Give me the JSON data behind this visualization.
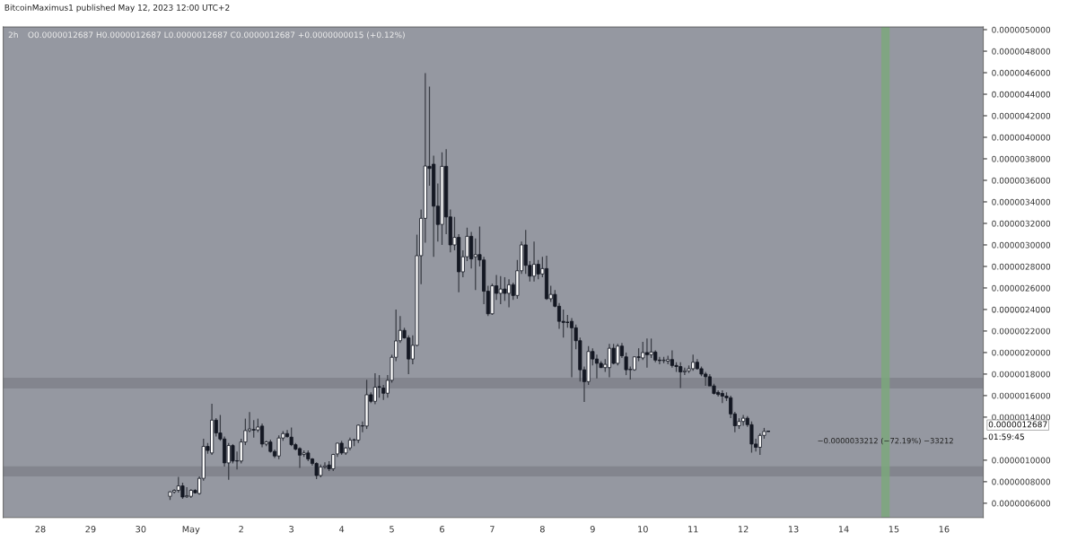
{
  "chart_data": {
    "type": "candlestick",
    "title": "2h",
    "subtitle": "O0.0000012687 H0.0000012687 L0.0000012687 C0.0000012687 +0.0000000015 (+0.12%)",
    "x": [
      "2023-04-30T14:00",
      "2023-04-30T16:00",
      "2023-04-30T18:00",
      "2023-04-30T20:00",
      "2023-04-30T22:00",
      "2023-05-01T00:00",
      "2023-05-01T02:00",
      "2023-05-01T04:00",
      "2023-05-01T06:00",
      "2023-05-01T08:00",
      "2023-05-01T10:00",
      "2023-05-01T12:00",
      "2023-05-01T14:00",
      "2023-05-01T16:00",
      "2023-05-01T18:00",
      "2023-05-01T20:00",
      "2023-05-01T22:00",
      "2023-05-02T00:00",
      "2023-05-02T02:00",
      "2023-05-02T04:00",
      "2023-05-02T06:00",
      "2023-05-02T08:00",
      "2023-05-02T10:00",
      "2023-05-02T12:00",
      "2023-05-02T14:00",
      "2023-05-02T16:00",
      "2023-05-02T18:00",
      "2023-05-02T20:00",
      "2023-05-02T22:00",
      "2023-05-03T00:00",
      "2023-05-03T02:00",
      "2023-05-03T04:00",
      "2023-05-03T06:00",
      "2023-05-03T08:00",
      "2023-05-03T10:00",
      "2023-05-03T12:00",
      "2023-05-03T14:00",
      "2023-05-03T16:00",
      "2023-05-03T18:00",
      "2023-05-03T20:00",
      "2023-05-03T22:00",
      "2023-05-04T00:00",
      "2023-05-04T02:00",
      "2023-05-04T04:00",
      "2023-05-04T06:00",
      "2023-05-04T08:00",
      "2023-05-04T10:00",
      "2023-05-04T12:00",
      "2023-05-04T14:00",
      "2023-05-04T16:00",
      "2023-05-04T18:00",
      "2023-05-04T20:00",
      "2023-05-04T22:00",
      "2023-05-05T00:00",
      "2023-05-05T02:00",
      "2023-05-05T04:00",
      "2023-05-05T06:00",
      "2023-05-05T08:00",
      "2023-05-05T10:00",
      "2023-05-05T12:00",
      "2023-05-05T14:00",
      "2023-05-05T16:00",
      "2023-05-05T18:00",
      "2023-05-05T20:00",
      "2023-05-05T22:00",
      "2023-05-06T00:00",
      "2023-05-06T02:00",
      "2023-05-06T04:00",
      "2023-05-06T06:00",
      "2023-05-06T08:00",
      "2023-05-06T10:00",
      "2023-05-06T12:00",
      "2023-05-06T14:00",
      "2023-05-06T16:00",
      "2023-05-06T18:00",
      "2023-05-06T20:00",
      "2023-05-06T22:00",
      "2023-05-07T00:00",
      "2023-05-07T02:00",
      "2023-05-07T04:00",
      "2023-05-07T06:00",
      "2023-05-07T08:00",
      "2023-05-07T10:00",
      "2023-05-07T12:00",
      "2023-05-07T14:00",
      "2023-05-07T16:00",
      "2023-05-07T18:00",
      "2023-05-07T20:00",
      "2023-05-07T22:00",
      "2023-05-08T00:00",
      "2023-05-08T02:00",
      "2023-05-08T04:00",
      "2023-05-08T06:00",
      "2023-05-08T08:00",
      "2023-05-08T10:00",
      "2023-05-08T12:00",
      "2023-05-08T14:00",
      "2023-05-08T16:00",
      "2023-05-08T18:00",
      "2023-05-08T20:00",
      "2023-05-08T22:00",
      "2023-05-09T00:00",
      "2023-05-09T02:00",
      "2023-05-09T04:00",
      "2023-05-09T06:00",
      "2023-05-09T08:00",
      "2023-05-09T10:00",
      "2023-05-09T12:00",
      "2023-05-09T14:00",
      "2023-05-09T16:00",
      "2023-05-09T18:00",
      "2023-05-09T20:00",
      "2023-05-09T22:00",
      "2023-05-10T00:00",
      "2023-05-10T02:00",
      "2023-05-10T04:00",
      "2023-05-10T06:00",
      "2023-05-10T08:00",
      "2023-05-10T10:00",
      "2023-05-10T12:00",
      "2023-05-10T14:00",
      "2023-05-10T16:00",
      "2023-05-10T18:00",
      "2023-05-10T20:00",
      "2023-05-10T22:00",
      "2023-05-11T00:00",
      "2023-05-11T02:00",
      "2023-05-11T04:00",
      "2023-05-11T06:00",
      "2023-05-11T08:00",
      "2023-05-11T10:00",
      "2023-05-11T12:00",
      "2023-05-11T14:00",
      "2023-05-11T16:00",
      "2023-05-11T18:00",
      "2023-05-11T20:00",
      "2023-05-11T22:00",
      "2023-05-12T00:00",
      "2023-05-12T02:00",
      "2023-05-12T04:00",
      "2023-05-12T06:00",
      "2023-05-12T08:00",
      "2023-05-12T10:00",
      "2023-05-12T12:00"
    ],
    "ohlc": [
      [
        6.64e-07,
        7.1e-07,
        6.3e-07,
        7.06e-07
      ],
      [
        7.06e-07,
        7.3e-07,
        6.9e-07,
        7.2e-07
      ],
      [
        7.2e-07,
        8.44e-07,
        7e-07,
        7.61e-07
      ],
      [
        7.61e-07,
        7.9e-07,
        6.4e-07,
        6.58e-07
      ],
      [
        6.6e-07,
        7.5e-07,
        6.5e-07,
        6.7e-07
      ],
      [
        6.64e-07,
        7.3e-07,
        6.5e-07,
        7.2e-07
      ],
      [
        7.2e-07,
        7.3e-07,
        6.9e-07,
        6.97e-07
      ],
      [
        6.9e-07,
        8.5e-07,
        6.8e-07,
        8.31e-07
      ],
      [
        8.31e-07,
        1.2e-06,
        8.1e-07,
        1.128e-06
      ],
      [
        1.128e-06,
        1.16e-06,
        1.06e-06,
        1.09e-06
      ],
      [
        1.067e-06,
        1.525e-06,
        1.05e-06,
        1.372e-06
      ],
      [
        1.372e-06,
        1.39e-06,
        1.22e-06,
        1.253e-06
      ],
      [
        1.253e-06,
        1.42e-06,
        1.18e-06,
        1.197e-06
      ],
      [
        1.197e-06,
        1.22e-06,
        9.4e-07,
        9.75e-07
      ],
      [
        9.75e-07,
        1.16e-06,
        8.17e-07,
        1.136e-06
      ],
      [
        1.136e-06,
        1.15e-06,
        9.7e-07,
        9.92e-07
      ],
      [
        9.92e-07,
        1.08e-06,
        9.14e-07,
        9.95e-07
      ],
      [
        9.92e-07,
        1.2e-06,
        9.7e-07,
        1.169e-06
      ],
      [
        1.169e-06,
        1.386e-06,
        1.14e-06,
        1.275e-06
      ],
      [
        1.275e-06,
        1.447e-06,
        1.26e-06,
        1.29e-06
      ],
      [
        1.285e-06,
        1.372e-06,
        1.21e-06,
        1.28e-06
      ],
      [
        1.281e-06,
        1.386e-06,
        1.26e-06,
        1.308e-06
      ],
      [
        1.317e-06,
        1.34e-06,
        1.12e-06,
        1.15e-06
      ],
      [
        1.15e-06,
        1.18e-06,
        1.13e-06,
        1.169e-06
      ],
      [
        1.169e-06,
        1.19e-06,
        1.07e-06,
        1.081e-06
      ],
      [
        1.081e-06,
        1.1e-06,
        1.02e-06,
        1.039e-06
      ],
      [
        1.039e-06,
        1.23e-06,
        1.01e-06,
        1.206e-06
      ],
      [
        1.206e-06,
        1.27e-06,
        1.18e-06,
        1.247e-06
      ],
      [
        1.247e-06,
        1.28e-06,
        1.21e-06,
        1.219e-06
      ],
      [
        1.214e-06,
        1.303e-06,
        1.13e-06,
        1.144e-06
      ],
      [
        1.144e-06,
        1.16e-06,
        1.09e-06,
        1.103e-06
      ],
      [
        1.108e-06,
        1.12e-06,
        9.28e-07,
        1.047e-06
      ],
      [
        1.053e-06,
        1.09e-06,
        1.03e-06,
        1.067e-06
      ],
      [
        1.067e-06,
        1.09e-06,
        9.9e-07,
        1.011e-06
      ],
      [
        1.011e-06,
        1.02e-06,
        9.5e-07,
        9.69e-07
      ],
      [
        9.69e-07,
        9.8e-07,
        8.25e-07,
        8.58e-07
      ],
      [
        8.58e-07,
        9.6e-07,
        8.4e-07,
        9.36e-07
      ],
      [
        9.36e-07,
        9.8e-07,
        9.2e-07,
        9.47e-07
      ],
      [
        9.55e-07,
        9.9e-07,
        9e-07,
        9.2e-07
      ],
      [
        9.2e-07,
        1.06e-06,
        9e-07,
        1.053e-06
      ],
      [
        1.058e-06,
        1.16e-06,
        1.03e-06,
        1.158e-06
      ],
      [
        1.158e-06,
        1.18e-06,
        1.05e-06,
        1.067e-06
      ],
      [
        1.067e-06,
        1.12e-06,
        1.05e-06,
        1.114e-06
      ],
      [
        1.114e-06,
        1.21e-06,
        1.09e-06,
        1.186e-06
      ],
      [
        1.186e-06,
        1.2e-06,
        1.13e-06,
        1.19e-06
      ],
      [
        1.186e-06,
        1.33e-06,
        1.16e-06,
        1.325e-06
      ],
      [
        1.317e-06,
        1.36e-06,
        1.26e-06,
        1.32e-06
      ],
      [
        1.317e-06,
        1.747e-06,
        1.29e-06,
        1.608e-06
      ],
      [
        1.608e-06,
        1.63e-06,
        1.53e-06,
        1.547e-06
      ],
      [
        1.547e-06,
        1.808e-06,
        1.52e-06,
        1.678e-06
      ],
      [
        1.68e-06,
        1.79e-06,
        1.58e-06,
        1.68e-06
      ],
      [
        1.67e-06,
        1.7e-06,
        1.56e-06,
        1.622e-06
      ],
      [
        1.622e-06,
        1.79e-06,
        1.58e-06,
        1.742e-06
      ],
      [
        1.742e-06,
        1.98e-06,
        1.72e-06,
        1.956e-06
      ],
      [
        1.956e-06,
        2.4e-06,
        1.92e-06,
        2.108e-06
      ],
      [
        2.11e-06,
        2.34e-06,
        2.09e-06,
        2.206e-06
      ],
      [
        2.206e-06,
        2.23e-06,
        2.13e-06,
        2.136e-06
      ],
      [
        2.136e-06,
        2.16e-06,
        1.8e-06,
        1.94e-06
      ],
      [
        1.94e-06,
        2.16e-06,
        1.89e-06,
        2.067e-06
      ],
      [
        2.067e-06,
        3.095e-06,
        2.06e-06,
        2.9e-06
      ],
      [
        2.9e-06,
        3.33e-06,
        2.635e-06,
        3.247e-06
      ],
      [
        3.247e-06,
        4.595e-06,
        3.02e-06,
        3.733e-06
      ],
      [
        3.73e-06,
        4.47e-06,
        3.55e-06,
        3.71e-06
      ],
      [
        3.75e-06,
        3.83e-06,
        2.89e-06,
        3.36e-06
      ],
      [
        3.36e-06,
        3.57e-06,
        3.03e-06,
        3.19e-06
      ],
      [
        3.19e-06,
        3.86e-06,
        3e-06,
        3.73e-06
      ],
      [
        3.73e-06,
        3.89e-06,
        3.1e-06,
        3.26e-06
      ],
      [
        3.26e-06,
        3.33e-06,
        2.93e-06,
        3e-06
      ],
      [
        3e-06,
        3.26e-06,
        2.95e-06,
        3.07e-06
      ],
      [
        3.07e-06,
        3.1e-06,
        2.56e-06,
        2.75e-06
      ],
      [
        2.75e-06,
        2.95e-06,
        2.7e-06,
        2.89e-06
      ],
      [
        2.89e-06,
        3.16e-06,
        2.85e-06,
        3.08e-06
      ],
      [
        3.08e-06,
        3.12e-06,
        2.78e-06,
        2.87e-06
      ],
      [
        2.89e-06,
        3.06e-06,
        2.58e-06,
        2.91e-06
      ],
      [
        2.91e-06,
        3.17e-06,
        2.8e-06,
        2.86e-06
      ],
      [
        2.86e-06,
        2.89e-06,
        2.45e-06,
        2.57e-06
      ],
      [
        2.57e-06,
        2.62e-06,
        2.34e-06,
        2.36e-06
      ],
      [
        2.36e-06,
        2.64e-06,
        2.35e-06,
        2.62e-06
      ],
      [
        2.62e-06,
        2.72e-06,
        2.49e-06,
        2.55e-06
      ],
      [
        2.55e-06,
        2.71e-06,
        2.45e-06,
        2.59e-06
      ],
      [
        2.59e-06,
        2.7e-06,
        2.48e-06,
        2.55e-06
      ],
      [
        2.55e-06,
        2.68e-06,
        2.42e-06,
        2.63e-06
      ],
      [
        2.63e-06,
        2.65e-06,
        2.49e-06,
        2.53e-06
      ],
      [
        2.53e-06,
        2.86e-06,
        2.5e-06,
        2.76e-06
      ],
      [
        2.76e-06,
        3.03e-06,
        2.73e-06,
        3e-06
      ],
      [
        3e-06,
        3.14e-06,
        2.73e-06,
        2.81e-06
      ],
      [
        2.81e-06,
        2.85e-06,
        2.66e-06,
        2.71e-06
      ],
      [
        2.71e-06,
        3.03e-06,
        2.66e-06,
        2.82e-06
      ],
      [
        2.82e-06,
        2.86e-06,
        2.68e-06,
        2.73e-06
      ],
      [
        2.73e-06,
        2.89e-06,
        2.7e-06,
        2.78e-06
      ],
      [
        2.78e-06,
        2.9e-06,
        2.49e-06,
        2.5e-06
      ],
      [
        2.5e-06,
        2.62e-06,
        2.47e-06,
        2.54e-06
      ],
      [
        2.54e-06,
        2.58e-06,
        2.42e-06,
        2.43e-06
      ],
      [
        2.43e-06,
        2.46e-06,
        2.22e-06,
        2.29e-06
      ],
      [
        2.29e-06,
        2.4e-06,
        2.14e-06,
        2.28e-06
      ],
      [
        2.28e-06,
        2.35e-06,
        2.23e-06,
        2.28e-06
      ],
      [
        2.29e-06,
        2.32e-06,
        1.77e-06,
        2.23e-06
      ],
      [
        2.23e-06,
        2.26e-06,
        2.03e-06,
        2.11e-06
      ],
      [
        2.11e-06,
        2.14e-06,
        1.73e-06,
        1.84e-06
      ],
      [
        1.84e-06,
        1.87e-06,
        1.54e-06,
        1.73e-06
      ],
      [
        1.73e-06,
        2.06e-06,
        1.7e-06,
        2.01e-06
      ],
      [
        2.01e-06,
        2.04e-06,
        1.88e-06,
        1.94e-06
      ],
      [
        1.94e-06,
        1.98e-06,
        1.76e-06,
        1.9e-06
      ],
      [
        1.9e-06,
        1.92e-06,
        1.86e-06,
        1.86e-06
      ],
      [
        1.86e-06,
        1.94e-06,
        1.82e-06,
        1.89e-06
      ],
      [
        1.86e-06,
        2.08e-06,
        1.77e-06,
        2.04e-06
      ],
      [
        2.04e-06,
        2.08e-06,
        1.89e-06,
        1.9e-06
      ],
      [
        1.9e-06,
        2.08e-06,
        1.88e-06,
        2.06e-06
      ],
      [
        2.06e-06,
        2.09e-06,
        1.95e-06,
        1.97e-06
      ],
      [
        1.96e-06,
        2e-06,
        1.79e-06,
        1.84e-06
      ],
      [
        1.84e-06,
        1.87e-06,
        1.75e-06,
        1.845e-06
      ],
      [
        1.84e-06,
        1.96e-06,
        1.83e-06,
        1.96e-06
      ],
      [
        1.96e-06,
        2.04e-06,
        1.92e-06,
        1.955e-06
      ],
      [
        1.95e-06,
        2.1e-06,
        1.93e-06,
        2e-06
      ],
      [
        2e-06,
        2.13e-06,
        1.86e-06,
        1.98e-06
      ],
      [
        1.98e-06,
        2.13e-06,
        1.95e-06,
        2.005e-06
      ],
      [
        2.005e-06,
        2.02e-06,
        1.91e-06,
        1.93e-06
      ],
      [
        1.93e-06,
        1.96e-06,
        1.89e-06,
        1.925e-06
      ],
      [
        1.925e-06,
        1.96e-06,
        1.9e-06,
        1.93e-06
      ],
      [
        1.92e-06,
        1.97e-06,
        1.89e-06,
        1.935e-06
      ],
      [
        1.935e-06,
        2.02e-06,
        1.86e-06,
        1.88e-06
      ],
      [
        1.88e-06,
        1.91e-06,
        1.82e-06,
        1.87e-06
      ],
      [
        1.87e-06,
        1.91e-06,
        1.67e-06,
        1.82e-06
      ],
      [
        1.82e-06,
        1.86e-06,
        1.79e-06,
        1.83e-06
      ],
      [
        1.83e-06,
        1.88e-06,
        1.81e-06,
        1.85e-06
      ],
      [
        1.85e-06,
        1.98e-06,
        1.83e-06,
        1.91e-06
      ],
      [
        1.91e-06,
        1.94e-06,
        1.84e-06,
        1.85e-06
      ],
      [
        1.85e-06,
        1.87e-06,
        1.78e-06,
        1.8e-06
      ],
      [
        1.8e-06,
        1.82e-06,
        1.69e-06,
        1.775e-06
      ],
      [
        1.775e-06,
        1.8e-06,
        1.69e-06,
        1.69e-06
      ],
      [
        1.69e-06,
        1.71e-06,
        1.61e-06,
        1.62e-06
      ],
      [
        1.63e-06,
        1.65e-06,
        1.59e-06,
        1.61e-06
      ],
      [
        1.62e-06,
        1.65e-06,
        1.53e-06,
        1.595e-06
      ],
      [
        1.595e-06,
        1.63e-06,
        1.55e-06,
        1.58e-06
      ],
      [
        1.58e-06,
        1.6e-06,
        1.39e-06,
        1.43e-06
      ],
      [
        1.43e-06,
        1.45e-06,
        1.26e-06,
        1.32e-06
      ],
      [
        1.32e-06,
        1.39e-06,
        1.29e-06,
        1.36e-06
      ],
      [
        1.36e-06,
        1.42e-06,
        1.32e-06,
        1.39e-06
      ],
      [
        1.39e-06,
        1.41e-06,
        1.31e-06,
        1.33e-06
      ],
      [
        1.33e-06,
        1.36e-06,
        1.07e-06,
        1.15e-06
      ],
      [
        1.15e-06,
        1.2e-06,
        1.08e-06,
        1.12e-06
      ],
      [
        1.12e-06,
        1.25e-06,
        1.05e-06,
        1.23e-06
      ],
      [
        1.23e-06,
        1.3e-06,
        1.2e-06,
        1.267e-06
      ],
      [
        1.2687e-06,
        1.2687e-06,
        1.2687e-06,
        1.2687e-06
      ]
    ],
    "xlim": [
      "2023-04-27T06:15",
      "2023-05-16T18:45"
    ],
    "xticks": [
      {
        "value": "2023-04-28",
        "label": "28"
      },
      {
        "value": "2023-04-29",
        "label": "29"
      },
      {
        "value": "2023-04-30",
        "label": "30"
      },
      {
        "value": "2023-05-01",
        "label": "May"
      },
      {
        "value": "2023-05-02",
        "label": "2"
      },
      {
        "value": "2023-05-03",
        "label": "3"
      },
      {
        "value": "2023-05-04",
        "label": "4"
      },
      {
        "value": "2023-05-05",
        "label": "5"
      },
      {
        "value": "2023-05-06",
        "label": "6"
      },
      {
        "value": "2023-05-07",
        "label": "7"
      },
      {
        "value": "2023-05-08",
        "label": "8"
      },
      {
        "value": "2023-05-09",
        "label": "9"
      },
      {
        "value": "2023-05-10",
        "label": "10"
      },
      {
        "value": "2023-05-11",
        "label": "11"
      },
      {
        "value": "2023-05-12",
        "label": "12"
      },
      {
        "value": "2023-05-13",
        "label": "13"
      },
      {
        "value": "2023-05-14",
        "label": "14"
      },
      {
        "value": "2023-05-15",
        "label": "15"
      },
      {
        "value": "2023-05-16",
        "label": "16"
      }
    ],
    "ylim": [
      4.67e-07,
      5.025e-06
    ],
    "yticks": [
      {
        "value": 6e-07,
        "label": "0.0000006000"
      },
      {
        "value": 8e-07,
        "label": "0.0000008000"
      },
      {
        "value": 1e-06,
        "label": "0.0000010000"
      },
      {
        "value": 1.2e-06,
        "label": null
      },
      {
        "value": 1.4e-06,
        "label": "0.0000014000"
      },
      {
        "value": 1.6e-06,
        "label": "0.0000016000"
      },
      {
        "value": 1.8e-06,
        "label": "0.0000018000"
      },
      {
        "value": 2e-06,
        "label": "0.0000020000"
      },
      {
        "value": 2.2e-06,
        "label": "0.0000022000"
      },
      {
        "value": 2.4e-06,
        "label": "0.0000024000"
      },
      {
        "value": 2.6e-06,
        "label": "0.0000026000"
      },
      {
        "value": 2.8e-06,
        "label": "0.0000028000"
      },
      {
        "value": 3e-06,
        "label": "0.0000030000"
      },
      {
        "value": 3.2e-06,
        "label": "0.0000032000"
      },
      {
        "value": 3.4e-06,
        "label": "0.0000034000"
      },
      {
        "value": 3.6e-06,
        "label": "0.0000036000"
      },
      {
        "value": 3.8e-06,
        "label": "0.0000038000"
      },
      {
        "value": 4e-06,
        "label": "0.0000040000"
      },
      {
        "value": 4.2e-06,
        "label": "0.0000042000"
      },
      {
        "value": 4.4e-06,
        "label": "0.0000044000"
      },
      {
        "value": 4.6e-06,
        "label": "0.0000046000"
      },
      {
        "value": 4.8e-06,
        "label": "0.0000048000"
      },
      {
        "value": 5e-06,
        "label": "0.0000050000"
      }
    ],
    "bands": [
      {
        "axis": "y",
        "from": 8.5e-07,
        "to": 9.42e-07,
        "color": "#7e8189"
      },
      {
        "axis": "y",
        "from": 1.667e-06,
        "to": 1.767e-06,
        "color": "#7e8189"
      },
      {
        "axis": "x",
        "from": "2023-05-14T18:00",
        "to": "2023-05-14T22:00",
        "color": "#7aa97b"
      }
    ],
    "annotations": [
      "BitcoinMaximus1 published May 12, 2023 12:00 UTC+2",
      {
        "text": "−0.0000033212 (−72.19%) −33212",
        "x": "2023-05-14T20:00",
        "y": 1.175e-06
      },
      "0.0000012687",
      "01:59:45"
    ],
    "grid": false
  }
}
